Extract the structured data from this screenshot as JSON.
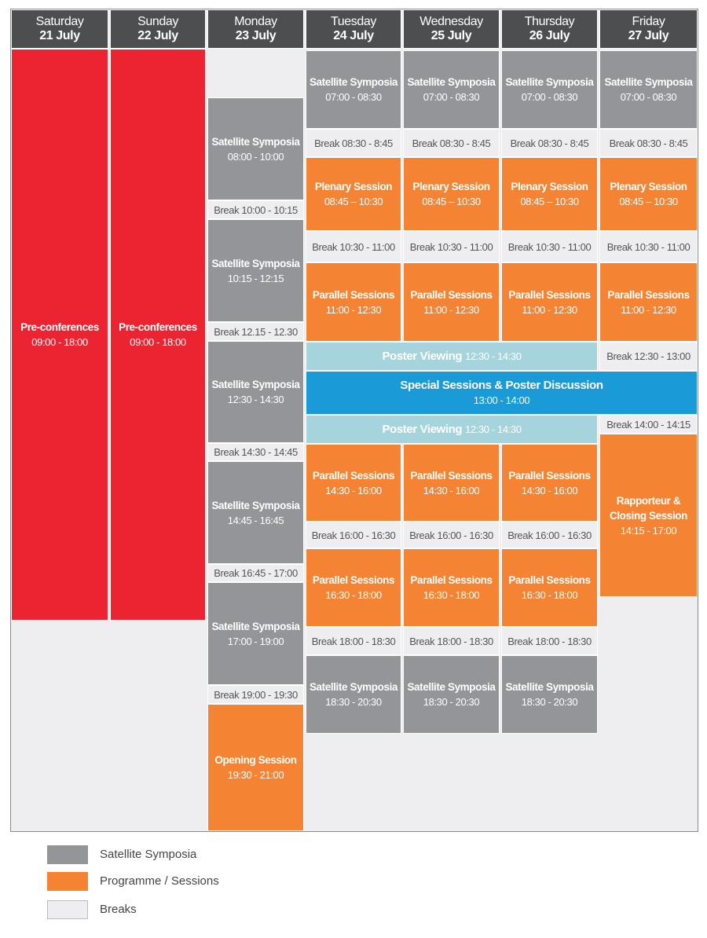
{
  "days": [
    {
      "name": "Saturday",
      "date": "21 July"
    },
    {
      "name": "Sunday",
      "date": "22 July"
    },
    {
      "name": "Monday",
      "date": "23 July"
    },
    {
      "name": "Tuesday",
      "date": "24 July"
    },
    {
      "name": "Wednesday",
      "date": "25 July"
    },
    {
      "name": "Thursday",
      "date": "26 July"
    },
    {
      "name": "Friday",
      "date": "27 July"
    }
  ],
  "blocks": [
    {
      "title": "Pre-conferences",
      "time": "09:00 - 18:00"
    },
    {
      "title": "Pre-conferences",
      "time": "09:00 - 18:00"
    },
    {
      "title": "Satellite Symposia",
      "time": "08:00 - 10:00"
    },
    {
      "title": "Break 10:00 - 10:15"
    },
    {
      "title": "Satellite Symposia",
      "time": "10:15 - 12:15"
    },
    {
      "title": "Break 12.15 - 12.30"
    },
    {
      "title": "Satellite Symposia",
      "time": "12:30 - 14:30"
    },
    {
      "title": "Break 14:30 - 14:45"
    },
    {
      "title": "Satellite Symposia",
      "time": "14:45 - 16:45"
    },
    {
      "title": "Break 16:45 - 17:00"
    },
    {
      "title": "Satellite Symposia",
      "time": "17:00 - 19:00"
    },
    {
      "title": "Break 19:00 - 19:30"
    },
    {
      "title": "Opening Session",
      "time": "19:30 - 21:00"
    },
    {
      "title": "Satellite Symposia",
      "time": "07:00 - 08:30"
    },
    {
      "title": "Break 08:30 - 8:45"
    },
    {
      "title": "Plenary Session",
      "time": "08:45 – 10:30"
    },
    {
      "title": "Break 10:30 - 11:00"
    },
    {
      "title": "Parallel Sessions",
      "time": "11:00 - 12:30"
    },
    {
      "title": "Parallel Sessions",
      "time": "14:30 - 16:00"
    },
    {
      "title": "Break 16:00 - 16:30"
    },
    {
      "title": "Parallel Sessions",
      "time": "16:30 - 18:00"
    },
    {
      "title": "Break 18:00 - 18:30"
    },
    {
      "title": "Satellite Symposia",
      "time": "18:30 - 20:30"
    },
    {
      "title": "Satellite Symposia",
      "time": "07:00 - 08:30"
    },
    {
      "title": "Break 08:30 - 8:45"
    },
    {
      "title": "Plenary Session",
      "time": "08:45 – 10:30"
    },
    {
      "title": "Break 10:30 - 11:00"
    },
    {
      "title": "Parallel Sessions",
      "time": "11:00 - 12:30"
    },
    {
      "title": "Parallel Sessions",
      "time": "14:30 - 16:00"
    },
    {
      "title": "Break 16:00 - 16:30"
    },
    {
      "title": "Parallel Sessions",
      "time": "16:30 - 18:00"
    },
    {
      "title": "Break 18:00 - 18:30"
    },
    {
      "title": "Satellite Symposia",
      "time": "18:30 - 20:30"
    },
    {
      "title": "Satellite Symposia",
      "time": "07:00 - 08:30"
    },
    {
      "title": "Break 08:30 - 8:45"
    },
    {
      "title": "Plenary Session",
      "time": "08:45 – 10:30"
    },
    {
      "title": "Break 10:30 - 11:00"
    },
    {
      "title": "Parallel Sessions",
      "time": "11:00 - 12:30"
    },
    {
      "title": "Parallel Sessions",
      "time": "14:30 - 16:00"
    },
    {
      "title": "Break 16:00 - 16:30"
    },
    {
      "title": "Parallel Sessions",
      "time": "16:30 - 18:00"
    },
    {
      "title": "Break 18:00 - 18:30"
    },
    {
      "title": "Satellite Symposia",
      "time": "18:30 - 20:30"
    },
    {
      "title": "Satellite Symposia",
      "time": "07:00 - 08:30"
    },
    {
      "title": "Break 08:30 - 8:45"
    },
    {
      "title": "Plenary Session",
      "time": "08:45 – 10:30"
    },
    {
      "title": "Break 10:30 - 11:00"
    },
    {
      "title": "Parallel Sessions",
      "time": "11:00 - 12:30"
    },
    {
      "title": "Break 12:30 - 13:00"
    },
    {
      "title": "Break 14:00 - 14:15"
    },
    {
      "title": "Rapporteur & Closing Session",
      "time": "14:15 - 17:00"
    },
    {
      "title": "Poster Viewing",
      "time": "12:30 - 14:30"
    },
    {
      "title": "Special Sessions & Poster Discussion",
      "time": "13:00 - 14:00"
    },
    {
      "title": "Poster Viewing",
      "time": "12:30 - 14:30"
    }
  ],
  "legend": [
    "Satellite Symposia",
    "Programme / Sessions",
    "Breaks"
  ]
}
